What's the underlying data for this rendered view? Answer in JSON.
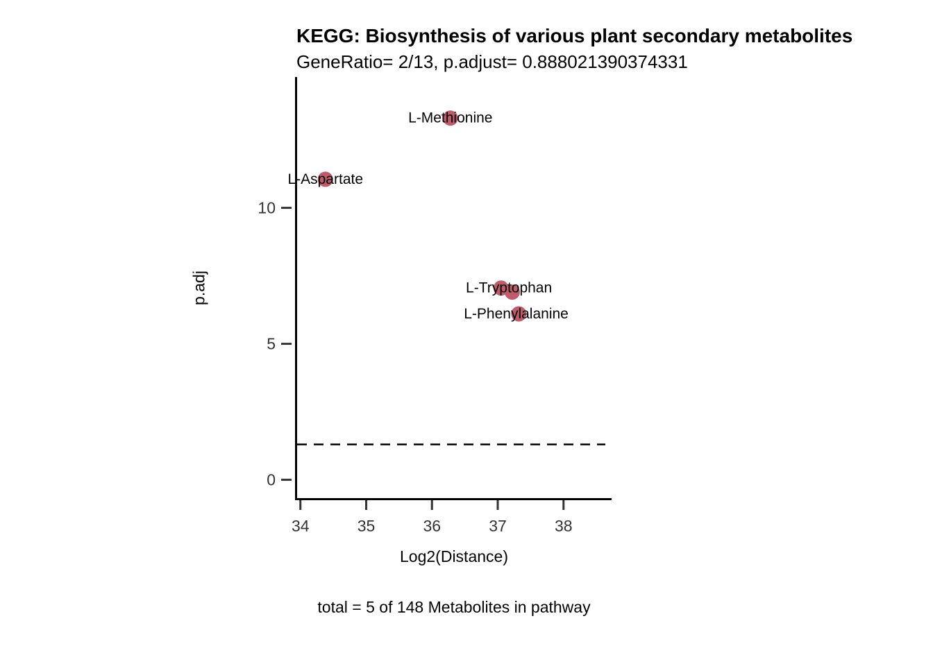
{
  "chart_data": {
    "type": "scatter",
    "title": "KEGG: Biosynthesis of various plant secondary metabolites",
    "subtitle": "GeneRatio= 2/13, p.adjust= 0.888021390374331",
    "caption": "total = 5 of 148 Metabolites in pathway",
    "xlabel": "Log2(Distance)",
    "ylabel": "p.adj",
    "xlim": [
      33.95,
      38.72
    ],
    "ylim": [
      -0.7,
      14.76
    ],
    "x_ticks": [
      "34",
      "35",
      "36",
      "37",
      "38"
    ],
    "x_tick_values": [
      34,
      35,
      36,
      37,
      38
    ],
    "y_ticks": [
      "0",
      "5",
      "10"
    ],
    "y_tick_values": [
      0,
      5,
      10
    ],
    "grid": "off",
    "legend": "none",
    "point_color": "#bf5b6b",
    "threshold_line": {
      "y": 1.3,
      "style": "dashed",
      "color": "#000000"
    },
    "points": [
      {
        "label": "L-Methionine",
        "x": 36.28,
        "y": 13.3,
        "label_dx": 0,
        "label_dy": 0
      },
      {
        "label": "L-Aspartate",
        "x": 34.38,
        "y": 11.05,
        "label_dx": 0,
        "label_dy": 0
      },
      {
        "label": "L-Tryptophan",
        "x": 37.05,
        "y": 7.05,
        "label_dx": 0.12,
        "label_dy": 0
      },
      {
        "label": "",
        "x": 37.22,
        "y": 6.9,
        "label_dx": 0,
        "label_dy": 0
      },
      {
        "label": "L-Phenylalanine",
        "x": 37.32,
        "y": 6.1,
        "label_dx": -0.04,
        "label_dy": 0
      }
    ]
  }
}
